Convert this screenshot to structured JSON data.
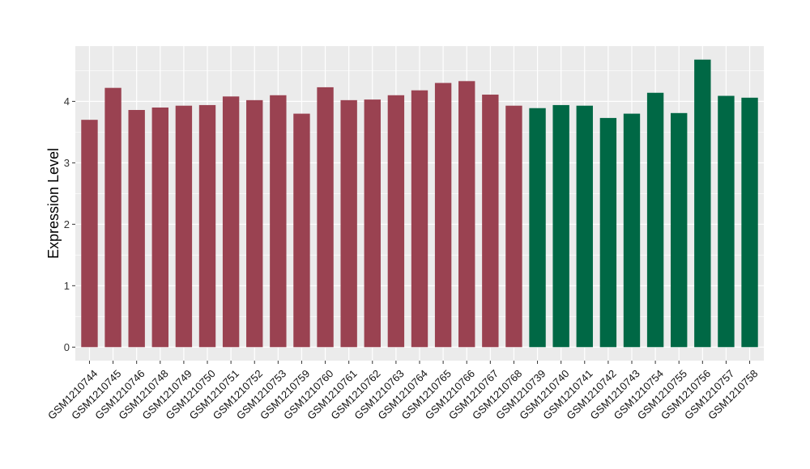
{
  "chart_data": {
    "type": "bar",
    "title": "",
    "xlabel": "",
    "ylabel": "Expression Level",
    "ylim": [
      -0.22,
      4.9
    ],
    "yticks": [
      0,
      1,
      2,
      3,
      4
    ],
    "grid": true,
    "colors": {
      "group_a": "#9A4251",
      "group_b": "#006845",
      "panel_bg": "#EBEBEB",
      "grid": "#FFFFFF"
    },
    "categories": [
      "GSM1210744",
      "GSM1210745",
      "GSM1210746",
      "GSM1210748",
      "GSM1210749",
      "GSM1210750",
      "GSM1210751",
      "GSM1210752",
      "GSM1210753",
      "GSM1210759",
      "GSM1210760",
      "GSM1210761",
      "GSM1210762",
      "GSM1210763",
      "GSM1210764",
      "GSM1210765",
      "GSM1210766",
      "GSM1210767",
      "GSM1210768",
      "GSM1210739",
      "GSM1210740",
      "GSM1210741",
      "GSM1210742",
      "GSM1210743",
      "GSM1210754",
      "GSM1210755",
      "GSM1210756",
      "GSM1210757",
      "GSM1210758"
    ],
    "values": [
      3.7,
      4.22,
      3.86,
      3.9,
      3.93,
      3.94,
      4.08,
      4.02,
      4.1,
      3.8,
      4.23,
      4.02,
      4.03,
      4.1,
      4.18,
      4.3,
      4.33,
      4.11,
      3.93,
      3.89,
      3.94,
      3.93,
      3.73,
      3.8,
      4.14,
      3.81,
      4.68,
      4.09,
      4.06
    ],
    "groups": [
      "group_a",
      "group_a",
      "group_a",
      "group_a",
      "group_a",
      "group_a",
      "group_a",
      "group_a",
      "group_a",
      "group_a",
      "group_a",
      "group_a",
      "group_a",
      "group_a",
      "group_a",
      "group_a",
      "group_a",
      "group_a",
      "group_a",
      "group_b",
      "group_b",
      "group_b",
      "group_b",
      "group_b",
      "group_b",
      "group_b",
      "group_b",
      "group_b",
      "group_b"
    ]
  }
}
